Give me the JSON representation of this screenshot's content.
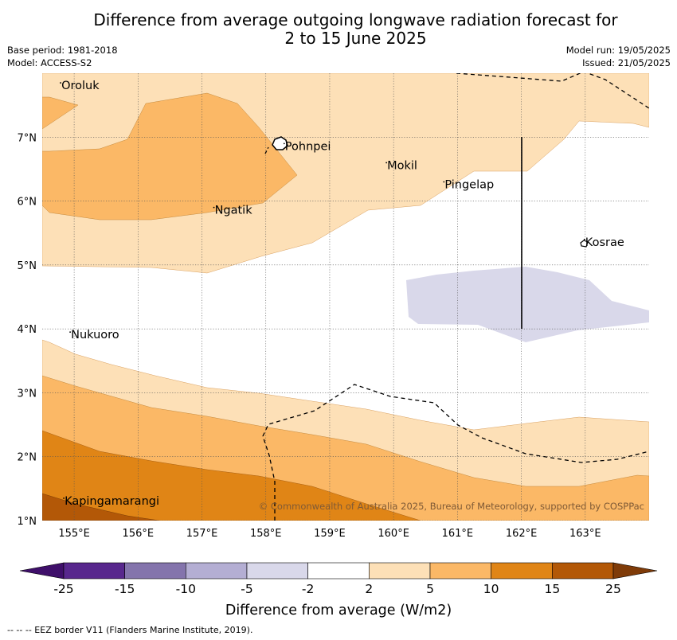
{
  "title_line1": "Difference from average outgoing longwave radiation forecast for",
  "title_line2": "2 to 15 June 2025",
  "meta_left": [
    "Base period: 1981-2018",
    "Model: ACCESS-S2"
  ],
  "meta_right": [
    "Model run: 19/05/2025",
    "Issued: 21/05/2025"
  ],
  "copyright": "© Commonwealth of Australia 2025, Bureau of Meteorology, supported by COSPPac",
  "footer": "--  --  -- EEZ border V11 (Flanders Marine Institute, 2019).",
  "map": {
    "lon_range": [
      154.5,
      164.0
    ],
    "lat_range": [
      1.0,
      8.0
    ],
    "lon_ticks": [
      {
        "v": 155,
        "label": "155°E"
      },
      {
        "v": 156,
        "label": "156°E"
      },
      {
        "v": 157,
        "label": "157°E"
      },
      {
        "v": 158,
        "label": "158°E"
      },
      {
        "v": 159,
        "label": "159°E"
      },
      {
        "v": 160,
        "label": "160°E"
      },
      {
        "v": 161,
        "label": "161°E"
      },
      {
        "v": 162,
        "label": "162°E"
      },
      {
        "v": 163,
        "label": "163°E"
      }
    ],
    "lat_ticks": [
      {
        "v": 1,
        "label": "1°N"
      },
      {
        "v": 2,
        "label": "2°N"
      },
      {
        "v": 3,
        "label": "3°N"
      },
      {
        "v": 4,
        "label": "4°N"
      },
      {
        "v": 5,
        "label": "5°N"
      },
      {
        "v": 6,
        "label": "6°N"
      },
      {
        "v": 7,
        "label": "7°N"
      }
    ],
    "places": [
      {
        "name": "Oroluk",
        "lon": 154.8,
        "lat": 7.75
      },
      {
        "name": "Pohnpei",
        "lon": 158.3,
        "lat": 6.8
      },
      {
        "name": "Mokil",
        "lon": 159.9,
        "lat": 6.5
      },
      {
        "name": "Pingelap",
        "lon": 160.8,
        "lat": 6.2
      },
      {
        "name": "Ngatik",
        "lon": 157.2,
        "lat": 5.8
      },
      {
        "name": "Kosrae",
        "lon": 163.0,
        "lat": 5.3
      },
      {
        "name": "Nukuoro",
        "lon": 154.95,
        "lat": 3.85
      },
      {
        "name": "Kapingamarangi",
        "lon": 154.85,
        "lat": 1.25
      }
    ]
  },
  "colorbar": {
    "title": "Difference from average (W/m2)",
    "ticks": [
      "-25",
      "-15",
      "-10",
      "-5",
      "-2",
      "2",
      "5",
      "10",
      "15",
      "25"
    ],
    "colors": [
      "#3f0f6a",
      "#58278d",
      "#8474ac",
      "#b4aed3",
      "#d9d8ea",
      "#ffffff",
      "#fde0b7",
      "#fbb866",
      "#e08516",
      "#b35807",
      "#7f3b08"
    ]
  }
}
